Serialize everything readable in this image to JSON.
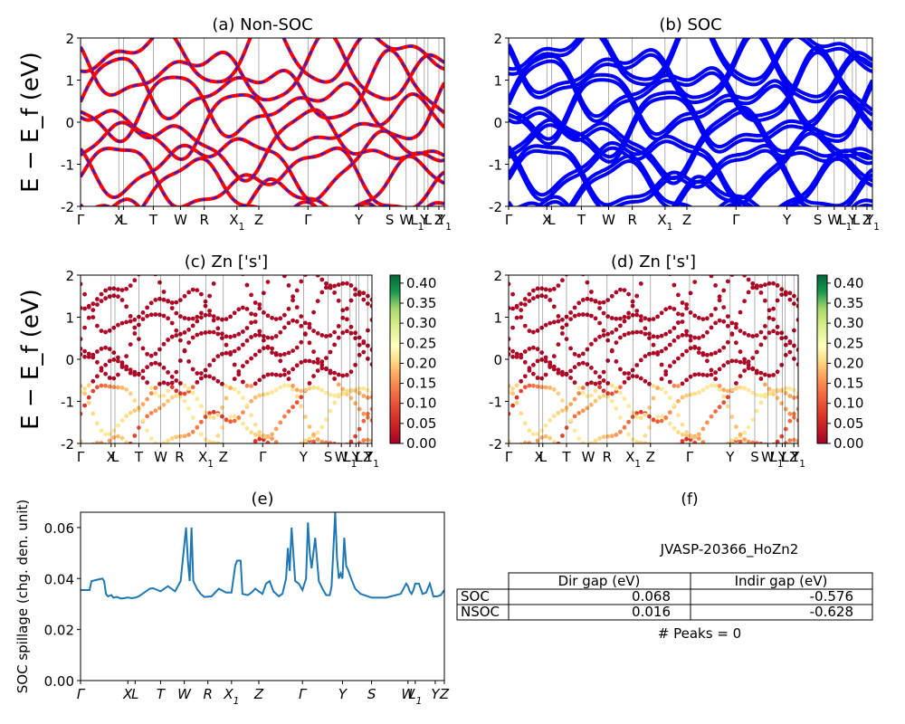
{
  "chart_data": [
    {
      "id": "a",
      "type": "line",
      "title": "(a) Non-SOC",
      "ylabel": "E − E_f (eV)",
      "ylim": [
        -2,
        2
      ],
      "yticks": [
        -2,
        -1,
        0,
        1,
        2
      ],
      "kpath": [
        "Γ",
        "X",
        "L",
        "T",
        "W",
        "R",
        "X1",
        "Z",
        "Γ",
        "Y",
        "S",
        "W",
        "L1",
        "Y",
        "L",
        "Z",
        "Y1"
      ],
      "kpath_pos": [
        0,
        0.105,
        0.118,
        0.2,
        0.275,
        0.34,
        0.43,
        0.49,
        0.625,
        0.765,
        0.85,
        0.895,
        0.925,
        0.945,
        0.955,
        0.985,
        1.0
      ],
      "series": [
        {
          "name": "non-SOC bands",
          "color": "#ff0000"
        },
        {
          "name": "SOC bands (overlay)",
          "color": "#1f1fe6"
        }
      ]
    },
    {
      "id": "b",
      "type": "line",
      "title": "(b) SOC",
      "ylim": [
        -2,
        2
      ],
      "yticks": [
        -2,
        -1,
        0,
        1,
        2
      ],
      "series": [
        {
          "name": "SOC bands",
          "color": "#0000ff"
        }
      ]
    },
    {
      "id": "c",
      "type": "scatter",
      "title": "(c)  Zn ['s']",
      "ylabel": "E − E_f (eV)",
      "ylim": [
        -2,
        2
      ],
      "yticks": [
        -2,
        -1,
        0,
        1,
        2
      ],
      "colorbar": {
        "range": [
          0.0,
          0.42
        ],
        "ticks": [
          "0.00",
          "0.05",
          "0.10",
          "0.15",
          "0.20",
          "0.25",
          "0.30",
          "0.35",
          "0.40"
        ],
        "cmap": "RdYlGn"
      }
    },
    {
      "id": "d",
      "type": "scatter",
      "title": "(d) Zn ['s']",
      "ylim": [
        -2,
        2
      ],
      "yticks": [
        -2,
        -1,
        0,
        1,
        2
      ],
      "colorbar": {
        "range": [
          0.0,
          0.42
        ],
        "ticks": [
          "0.00",
          "0.05",
          "0.10",
          "0.15",
          "0.20",
          "0.25",
          "0.30",
          "0.35",
          "0.40"
        ],
        "cmap": "RdYlGn"
      }
    },
    {
      "id": "e",
      "type": "line",
      "title": "(e)",
      "ylabel": "SOC spillage (chg. den. unit)",
      "ylim": [
        0,
        0.066
      ],
      "yticks": [
        "0.00",
        "0.02",
        "0.04",
        "0.06"
      ],
      "ytick_values": [
        0,
        0.02,
        0.04,
        0.06
      ],
      "kpath": [
        "Γ",
        "X",
        "L",
        "T",
        "W",
        "R",
        "X1",
        "Z",
        "Γ",
        "Y",
        "S",
        "W",
        "L1",
        "Y",
        "Z"
      ],
      "kpath_pos": [
        0,
        0.13,
        0.15,
        0.22,
        0.285,
        0.35,
        0.415,
        0.49,
        0.61,
        0.72,
        0.8,
        0.9,
        0.92,
        0.975,
        1.0
      ],
      "series": [
        {
          "name": "spillage",
          "color": "#1f77b4",
          "x": [
            0,
            0.025,
            0.03,
            0.06,
            0.065,
            0.07,
            0.075,
            0.085,
            0.09,
            0.1,
            0.11,
            0.12,
            0.13,
            0.14,
            0.15,
            0.16,
            0.17,
            0.18,
            0.19,
            0.2,
            0.22,
            0.24,
            0.26,
            0.275,
            0.28,
            0.29,
            0.295,
            0.3,
            0.305,
            0.31,
            0.32,
            0.33,
            0.34,
            0.36,
            0.38,
            0.4,
            0.415,
            0.425,
            0.43,
            0.44,
            0.445,
            0.46,
            0.47,
            0.48,
            0.49,
            0.5,
            0.51,
            0.52,
            0.53,
            0.545,
            0.555,
            0.56,
            0.565,
            0.57,
            0.575,
            0.58,
            0.59,
            0.6,
            0.61,
            0.62,
            0.625,
            0.63,
            0.635,
            0.645,
            0.655,
            0.665,
            0.675,
            0.685,
            0.69,
            0.7,
            0.705,
            0.71,
            0.715,
            0.72,
            0.725,
            0.73,
            0.735,
            0.745,
            0.755,
            0.77,
            0.8,
            0.84,
            0.88,
            0.895,
            0.9,
            0.905,
            0.91,
            0.915,
            0.92,
            0.93,
            0.94,
            0.95,
            0.96,
            0.97,
            0.98,
            0.99,
            1.0
          ],
          "y": [
            0.0355,
            0.0355,
            0.039,
            0.04,
            0.039,
            0.034,
            0.033,
            0.0335,
            0.0325,
            0.0328,
            0.0322,
            0.0323,
            0.0326,
            0.0323,
            0.0325,
            0.033,
            0.034,
            0.035,
            0.036,
            0.0362,
            0.035,
            0.037,
            0.035,
            0.039,
            0.046,
            0.06,
            0.047,
            0.039,
            0.06,
            0.039,
            0.036,
            0.034,
            0.0328,
            0.033,
            0.036,
            0.0345,
            0.0345,
            0.045,
            0.047,
            0.047,
            0.034,
            0.0335,
            0.0345,
            0.036,
            0.035,
            0.034,
            0.038,
            0.039,
            0.035,
            0.033,
            0.034,
            0.037,
            0.04,
            0.052,
            0.043,
            0.06,
            0.039,
            0.038,
            0.0355,
            0.04,
            0.062,
            0.05,
            0.044,
            0.056,
            0.039,
            0.036,
            0.0335,
            0.0335,
            0.037,
            0.066,
            0.048,
            0.04,
            0.042,
            0.04,
            0.056,
            0.045,
            0.0435,
            0.0395,
            0.036,
            0.034,
            0.0325,
            0.0325,
            0.034,
            0.038,
            0.037,
            0.035,
            0.034,
            0.0355,
            0.038,
            0.038,
            0.034,
            0.0345,
            0.038,
            0.033,
            0.033,
            0.0335,
            0.0355
          ]
        }
      ]
    }
  ],
  "table": {
    "panel_title": "(f)",
    "material": "JVASP-20366_HoZn2",
    "columns": [
      "",
      "Dir gap (eV)",
      "Indir gap (eV)"
    ],
    "rows": [
      {
        "label": "SOC",
        "dir": "0.068",
        "indir": "-0.576"
      },
      {
        "label": "NSOC",
        "dir": "0.016",
        "indir": "-0.628"
      }
    ],
    "peaks": "# Peaks = 0"
  }
}
